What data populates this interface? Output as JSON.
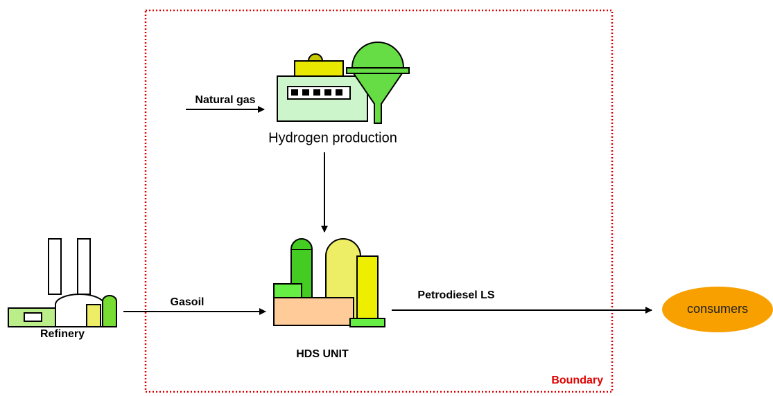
{
  "nodes": {
    "hydrogen": {
      "label": "Hydrogen production"
    },
    "hds": {
      "label": "HDS UNIT"
    },
    "refinery": {
      "label": "Refinery"
    },
    "consumers": {
      "label": "consumers"
    }
  },
  "flows": {
    "natural_gas": {
      "label": "Natural gas"
    },
    "gasoil": {
      "label": "Gasoil"
    },
    "petrodiesel": {
      "label": "Petrodiesel LS"
    }
  },
  "boundary": {
    "label": "Boundary"
  }
}
